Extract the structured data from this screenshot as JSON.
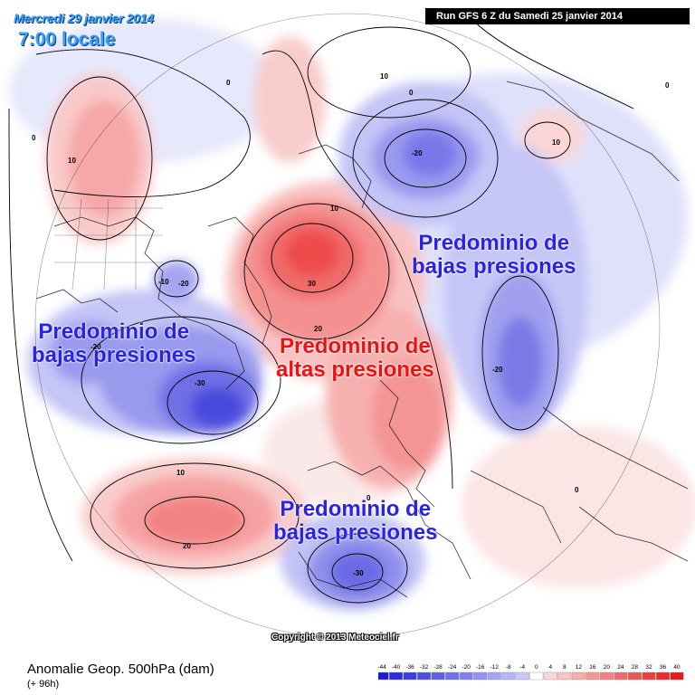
{
  "header": {
    "date": "Mercredi 29 janvier 2014",
    "time": "7:00 locale",
    "run": "Run GFS 6 Z du Samedi 25 janvier 2014"
  },
  "overlays": {
    "low_1": [
      "Predominio de",
      "bajas presiones"
    ],
    "low_2": [
      "Predominio de",
      "bajas presiones"
    ],
    "low_3": [
      "Predominio de",
      "bajas presiones"
    ],
    "high_1": [
      "Predominio de",
      "altas presiones"
    ]
  },
  "contour_labels": [
    "10",
    "0",
    "10",
    "0",
    "-20",
    "10",
    "10",
    "-10",
    "-20",
    "30",
    "20",
    "-20",
    "-30",
    "-20",
    "0",
    "10",
    "20",
    "0",
    "-30",
    "0",
    "0"
  ],
  "copyright": "Copyright © 2013 Meteociel.fr",
  "footer": {
    "title": "Anomalie Geop. 500hPa (dam)",
    "subtitle": "(+ 96h)"
  },
  "legend": {
    "ticks": [
      "-44",
      "-40",
      "-36",
      "-32",
      "-28",
      "-24",
      "-20",
      "-16",
      "-12",
      "-8",
      "-4",
      "0",
      "4",
      "8",
      "12",
      "16",
      "20",
      "24",
      "28",
      "32",
      "36",
      "40"
    ],
    "colors": [
      "#1a1ae6",
      "#2b2be8",
      "#3c3ceb",
      "#4d4ded",
      "#5e5ef0",
      "#6f6ff2",
      "#8080f4",
      "#9191f6",
      "#a3a3f8",
      "#b5b5fa",
      "#c8c8fc",
      "#ffffff",
      "#fcd6d6",
      "#fbc2c2",
      "#faacac",
      "#f89696",
      "#f68080",
      "#f46a6a",
      "#f25454",
      "#f03e3e",
      "#ee2a2a",
      "#ec1818"
    ]
  }
}
